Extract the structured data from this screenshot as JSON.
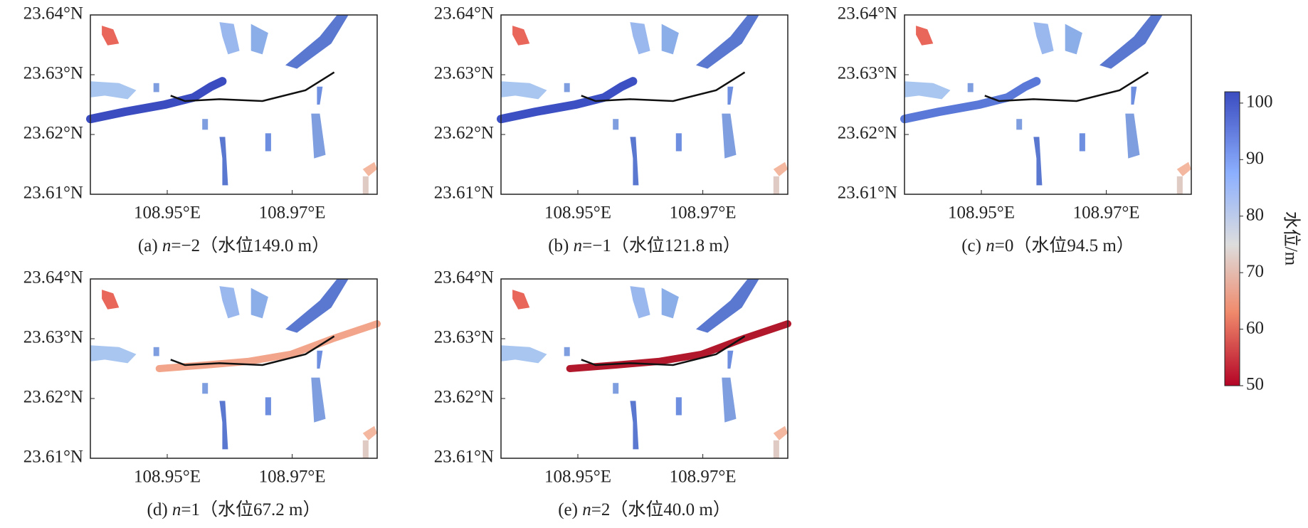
{
  "panels": [
    {
      "caption": {
        "prefix": "(a) ",
        "var": "n",
        "rest": "=−2（水位149.0 m）"
      },
      "river_color": "#3b4cc0"
    },
    {
      "caption": {
        "prefix": "(b) ",
        "var": "n",
        "rest": "=−1（水位121.8 m）"
      },
      "river_color": "#3d50c3"
    },
    {
      "caption": {
        "prefix": "(c) ",
        "var": "n",
        "rest": "=0（水位94.5 m）"
      },
      "river_color": "#5a78d8"
    },
    {
      "caption": {
        "prefix": "(d) ",
        "var": "n",
        "rest": "=1（水位67.2 m）"
      },
      "river_color": "#f2a58a"
    },
    {
      "caption": {
        "prefix": "(e) ",
        "var": "n",
        "rest": "=2（水位40.0 m）"
      },
      "river_color": "#b2182b"
    }
  ],
  "lat_ticks": [
    {
      "value": 23.61,
      "label": "23.61°N"
    },
    {
      "value": 23.62,
      "label": "23.62°N"
    },
    {
      "value": 23.63,
      "label": "23.63°N"
    },
    {
      "value": 23.64,
      "label": "23.64°N"
    }
  ],
  "lon_ticks": [
    {
      "value": 108.95,
      "label": "108.95°E"
    },
    {
      "value": 108.97,
      "label": "108.97°E"
    }
  ],
  "lat_range": [
    23.61,
    23.64
  ],
  "lon_range": [
    108.9377,
    108.9836
  ],
  "colorbar": {
    "label": "水位/m",
    "range": [
      50,
      102
    ],
    "ticks": [
      50,
      60,
      70,
      80,
      90,
      100
    ]
  }
}
